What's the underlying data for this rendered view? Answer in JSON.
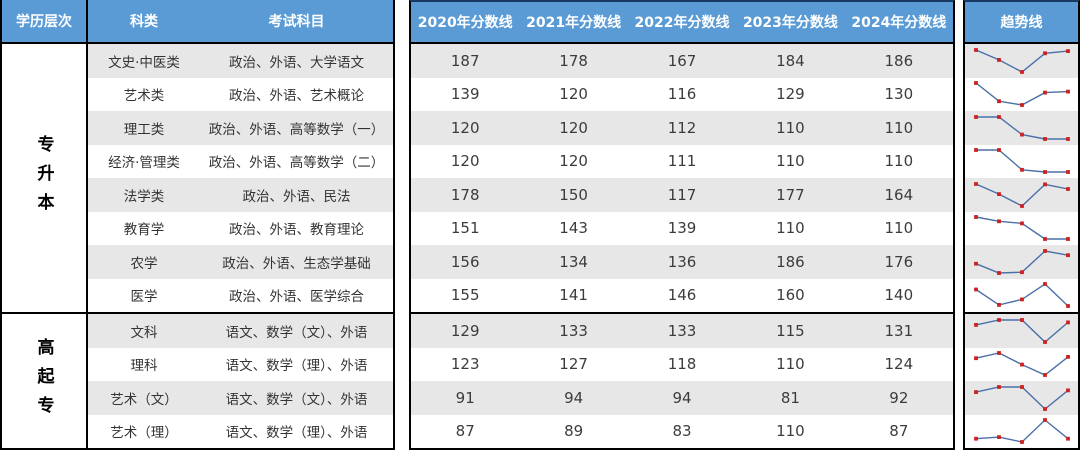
{
  "table": {
    "headers": {
      "level": "学历层次",
      "category": "科类",
      "subjects": "考试科目",
      "years": [
        "2020年分数线",
        "2021年分数线",
        "2022年分数线",
        "2023年分数线",
        "2024年分数线"
      ],
      "trend": "趋势线"
    },
    "sections": [
      {
        "level": "专升本",
        "rows": [
          {
            "category": "文史·中医类",
            "subjects": "政治、外语、大学语文",
            "scores": [
              187,
              178,
              167,
              184,
              186
            ]
          },
          {
            "category": "艺术类",
            "subjects": "政治、外语、艺术概论",
            "scores": [
              139,
              120,
              116,
              129,
              130
            ]
          },
          {
            "category": "理工类",
            "subjects": "政治、外语、高等数学（一）",
            "scores": [
              120,
              120,
              112,
              110,
              110
            ]
          },
          {
            "category": "经济·管理类",
            "subjects": "政治、外语、高等数学（二）",
            "scores": [
              120,
              120,
              111,
              110,
              110
            ]
          },
          {
            "category": "法学类",
            "subjects": "政治、外语、民法",
            "scores": [
              178,
              150,
              117,
              177,
              164
            ]
          },
          {
            "category": "教育学",
            "subjects": "政治、外语、教育理论",
            "scores": [
              151,
              143,
              139,
              110,
              110
            ]
          },
          {
            "category": "农学",
            "subjects": "政治、外语、生态学基础",
            "scores": [
              156,
              134,
              136,
              186,
              176
            ]
          },
          {
            "category": "医学",
            "subjects": "政治、外语、医学综合",
            "scores": [
              155,
              141,
              146,
              160,
              140
            ]
          }
        ]
      },
      {
        "level": "高起专",
        "rows": [
          {
            "category": "文科",
            "subjects": "语文、数学（文）、外语",
            "scores": [
              129,
              133,
              133,
              115,
              131
            ]
          },
          {
            "category": "理科",
            "subjects": "语文、数学（理）、外语",
            "scores": [
              123,
              127,
              118,
              110,
              124
            ]
          },
          {
            "category": "艺术（文）",
            "subjects": "语文、数学（文）、外语",
            "scores": [
              91,
              94,
              94,
              81,
              92
            ]
          },
          {
            "category": "艺术（理）",
            "subjects": "语文、数学（理）、外语",
            "scores": [
              87,
              89,
              83,
              110,
              87
            ]
          }
        ]
      }
    ]
  },
  "colors": {
    "header_bg": "#5B9BD5",
    "header_text": "#FFFFFF",
    "row_stripe": "#E7E7E7",
    "border": "#000000",
    "spark_line": "#4A70A8",
    "spark_marker": "#CE2020"
  },
  "chart_data": {
    "type": "table",
    "columns": [
      "学历层次",
      "科类",
      "考试科目",
      "2020年分数线",
      "2021年分数线",
      "2022年分数线",
      "2023年分数线",
      "2024年分数线",
      "趋势线"
    ],
    "x": [
      2020,
      2021,
      2022,
      2023,
      2024
    ],
    "series": [
      {
        "name": "专升本 文史·中医类",
        "values": [
          187,
          178,
          167,
          184,
          186
        ]
      },
      {
        "name": "专升本 艺术类",
        "values": [
          139,
          120,
          116,
          129,
          130
        ]
      },
      {
        "name": "专升本 理工类",
        "values": [
          120,
          120,
          112,
          110,
          110
        ]
      },
      {
        "name": "专升本 经济·管理类",
        "values": [
          120,
          120,
          111,
          110,
          110
        ]
      },
      {
        "name": "专升本 法学类",
        "values": [
          178,
          150,
          117,
          177,
          164
        ]
      },
      {
        "name": "专升本 教育学",
        "values": [
          151,
          143,
          139,
          110,
          110
        ]
      },
      {
        "name": "专升本 农学",
        "values": [
          156,
          134,
          136,
          186,
          176
        ]
      },
      {
        "name": "专升本 医学",
        "values": [
          155,
          141,
          146,
          160,
          140
        ]
      },
      {
        "name": "高起专 文科",
        "values": [
          129,
          133,
          133,
          115,
          131
        ]
      },
      {
        "name": "高起专 理科",
        "values": [
          123,
          127,
          118,
          110,
          124
        ]
      },
      {
        "name": "高起专 艺术（文）",
        "values": [
          91,
          94,
          94,
          81,
          92
        ]
      },
      {
        "name": "高起专 艺术（理）",
        "values": [
          87,
          89,
          83,
          110,
          87
        ]
      }
    ],
    "layout": {
      "sparkline_type": "line",
      "sparkline_markers": true,
      "grid": false,
      "legend": "none"
    }
  }
}
